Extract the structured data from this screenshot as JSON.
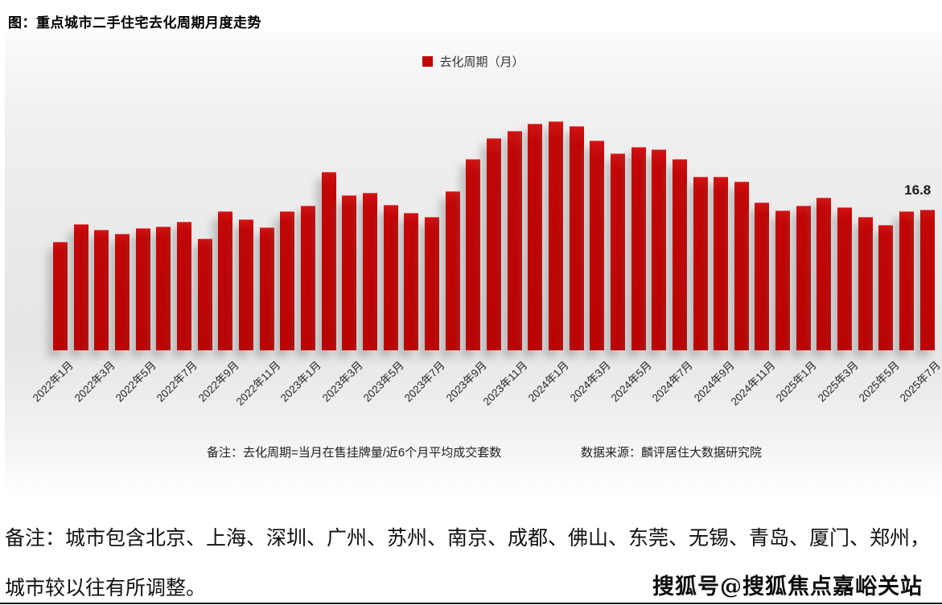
{
  "page": {
    "title": "图：重点城市二手住宅去化周期月度走势",
    "note": "备注：去化周期=当月在售挂牌量/近6个月平均成交套数",
    "source": "数据来源：麟评居住大数据研究院",
    "remark_line1": "备注：城市包含北京、上海、深圳、广州、苏州、南京、成都、佛山、东莞、无锡、青岛、厦门、郑州，",
    "remark_line2": "城市较以往有所调整。",
    "watermark": "搜狐号@搜狐焦点嘉峪关站"
  },
  "colors": {
    "bar_red": "#c00606",
    "background_panel": "#ebebeb",
    "text_dark": "#1a1a1a"
  },
  "chart_data": {
    "type": "bar",
    "title": "图：重点城市二手住宅去化周期月度走势",
    "legend": [
      "去化周期（月）"
    ],
    "legend_position": "top-center",
    "grid": false,
    "ylim": [
      0,
      29
    ],
    "bar_color": "#c00606",
    "tick_label_every": 2,
    "last_value_label": "16.8",
    "categories": [
      "2022年1月",
      "2022年2月",
      "2022年3月",
      "2022年4月",
      "2022年5月",
      "2022年6月",
      "2022年7月",
      "2022年8月",
      "2022年9月",
      "2022年10月",
      "2022年11月",
      "2022年12月",
      "2023年1月",
      "2023年2月",
      "2023年3月",
      "2023年4月",
      "2023年5月",
      "2023年6月",
      "2023年7月",
      "2023年8月",
      "2023年9月",
      "2023年10月",
      "2023年11月",
      "2023年12月",
      "2024年1月",
      "2024年2月",
      "2024年3月",
      "2024年4月",
      "2024年5月",
      "2024年6月",
      "2024年7月",
      "2024年8月",
      "2024年9月",
      "2024年10月",
      "2024年11月",
      "2024年12月",
      "2025年1月",
      "2025年2月",
      "2025年3月",
      "2025年4月",
      "2025年5月",
      "2025年6月",
      "2025年7月"
    ],
    "values": [
      13.0,
      15.1,
      14.4,
      13.9,
      14.6,
      14.8,
      15.4,
      13.3,
      16.6,
      15.6,
      14.7,
      16.6,
      17.3,
      21.3,
      18.5,
      18.8,
      17.4,
      16.4,
      15.9,
      19.0,
      22.8,
      25.3,
      26.2,
      27.1,
      27.4,
      26.8,
      25.1,
      23.5,
      24.3,
      24.0,
      22.8,
      20.7,
      20.7,
      20.2,
      17.7,
      16.7,
      17.3,
      18.2,
      17.1,
      15.9,
      15.0,
      16.6,
      16.8
    ],
    "xlabel": "",
    "ylabel": "去化周期（月）"
  }
}
